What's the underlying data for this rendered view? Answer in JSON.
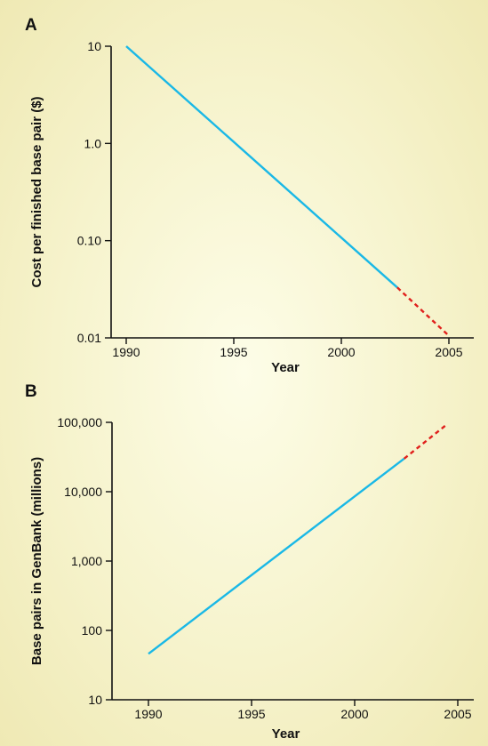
{
  "chart_data": [
    {
      "type": "line",
      "panel_label": "A",
      "xlabel": "Year",
      "ylabel": "Cost per finished base pair ($)",
      "yscale": "log",
      "xlim": [
        1989.3,
        2007
      ],
      "ylim": [
        0.01,
        10
      ],
      "xticks": [
        1990,
        1995,
        2000,
        2005
      ],
      "xtick_labels": [
        "1990",
        "1995",
        "2000",
        "2005"
      ],
      "yticks": [
        0.01,
        0.1,
        1,
        10
      ],
      "ytick_labels": [
        "0.01",
        "0.10",
        "1.0",
        "10"
      ],
      "grid": false,
      "series": [
        {
          "style": "solid",
          "color": "#1ab8e6",
          "x": [
            1990,
            2002.6
          ],
          "y": [
            10,
            0.033
          ]
        },
        {
          "style": "dashed",
          "color": "#e0201c",
          "x": [
            2002.6,
            2005
          ],
          "y": [
            0.033,
            0.0105
          ]
        }
      ]
    },
    {
      "type": "line",
      "panel_label": "B",
      "xlabel": "Year",
      "ylabel": "Base pairs in GenBank (millions)",
      "yscale": "log",
      "xlim": [
        1989,
        2005.8
      ],
      "ylim": [
        10,
        100000
      ],
      "xticks": [
        1990,
        1995,
        2000,
        2005
      ],
      "xtick_labels": [
        "1990",
        "1995",
        "2000",
        "2005"
      ],
      "yticks": [
        10,
        100,
        1000,
        10000,
        100000
      ],
      "ytick_labels": [
        "10",
        "100",
        "1,000",
        "10,000",
        "100,000"
      ],
      "grid": false,
      "series": [
        {
          "style": "solid",
          "color": "#1ab8e6",
          "x": [
            1990,
            2002.4
          ],
          "y": [
            46,
            30000
          ]
        },
        {
          "style": "dashed",
          "color": "#e0201c",
          "x": [
            2002.4,
            2004.5
          ],
          "y": [
            30000,
            95000
          ]
        }
      ]
    }
  ]
}
